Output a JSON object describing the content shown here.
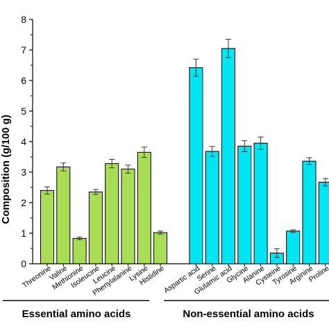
{
  "chart_data": {
    "type": "bar",
    "ylabel": "Composition (g/100 g)",
    "ylim": [
      0,
      8
    ],
    "yticks": [
      "0",
      "1",
      "2",
      "3",
      "4",
      "5",
      "6",
      "7",
      "8"
    ],
    "categories": [
      "Threonine",
      "Valine",
      "Methionine",
      "Isoleucine",
      "Leucine",
      "Phenylalanine",
      "Lysine",
      "Histidine",
      "Aspartic acid",
      "Serine",
      "Glutamic acid",
      "Glycine",
      "Alanine",
      "Cysteine",
      "Tyrosine",
      "Arginine",
      "Proline"
    ],
    "values": [
      2.4,
      3.17,
      0.83,
      2.35,
      3.28,
      3.1,
      3.65,
      1.02,
      6.42,
      3.68,
      7.05,
      3.85,
      3.95,
      0.35,
      1.07,
      3.36,
      2.67
    ],
    "errors": [
      0.12,
      0.13,
      0.04,
      0.08,
      0.14,
      0.13,
      0.17,
      0.05,
      0.28,
      0.16,
      0.3,
      0.18,
      0.2,
      0.14,
      0.04,
      0.11,
      0.12
    ],
    "groups": [
      {
        "name": "Essential amino acids",
        "color": "#a8dd55",
        "count": 8
      },
      {
        "name": "Non-essential amino acids",
        "color": "#00e5f2",
        "count": 9
      }
    ],
    "grid": false
  }
}
